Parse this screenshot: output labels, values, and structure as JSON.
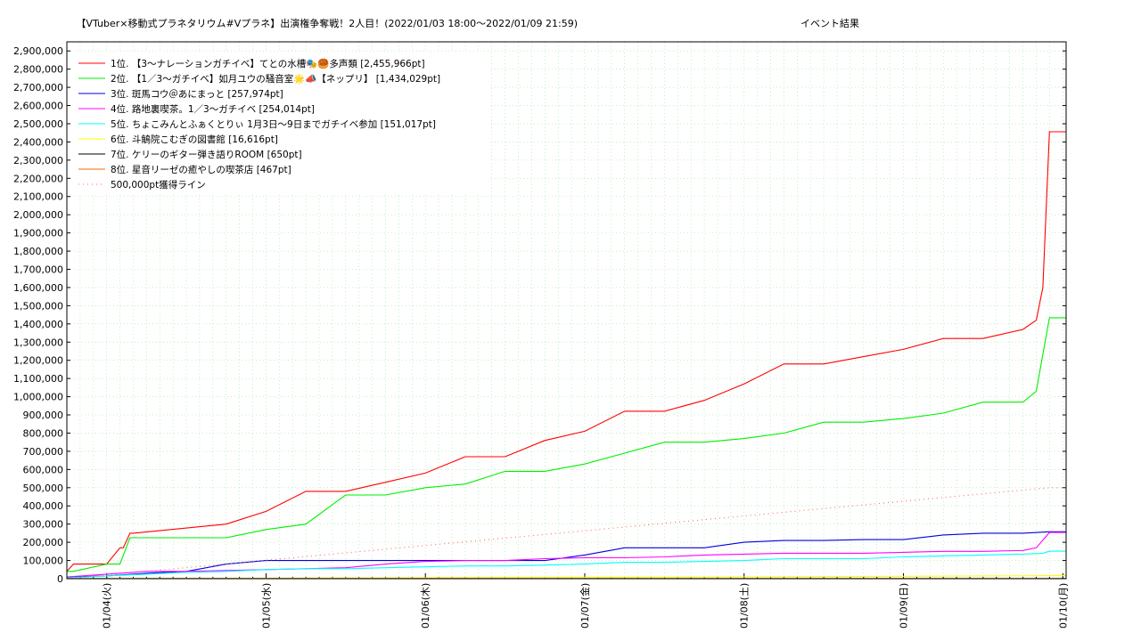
{
  "chart_data": {
    "type": "line",
    "title": "【VTuber×移動式プラネタリウム#Vプラネ】出演権争奪戦！2人目！(2022/01/03 18:00～2022/01/09 21:59)",
    "subtitle": "イベント結果",
    "xlabel": "",
    "ylabel": "",
    "xlim": [
      "2022-01-03 18:00",
      "2022-01-10 00:30"
    ],
    "ylim": [
      0,
      2950000
    ],
    "grid": true,
    "legend_position": "top-left",
    "x_ticks": [
      "01/04(火)",
      "01/05(水)",
      "01/06(木)",
      "01/07(金)",
      "01/08(土)",
      "01/09(日)",
      "01/10(月)"
    ],
    "y_ticks": [
      "0",
      "100,000",
      "200,000",
      "300,000",
      "400,000",
      "500,000",
      "600,000",
      "700,000",
      "800,000",
      "900,000",
      "1,000,000",
      "1,100,000",
      "1,200,000",
      "1,300,000",
      "1,400,000",
      "1,500,000",
      "1,600,000",
      "1,700,000",
      "1,800,000",
      "1,900,000",
      "2,000,000",
      "2,100,000",
      "2,200,000",
      "2,300,000",
      "2,400,000",
      "2,500,000",
      "2,600,000",
      "2,700,000",
      "2,800,000",
      "2,900,000"
    ],
    "series": [
      {
        "name": "1位. 【3～ナレーションガチイベ】てとの水槽🎭🥮多声類 [2,455,966pt]",
        "color": "#ff0000",
        "dash": "none",
        "x": [
          "2022-01-03 18:00",
          "2022-01-03 19:00",
          "2022-01-04 00:00",
          "2022-01-04 02:00",
          "2022-01-04 02:30",
          "2022-01-04 03:30",
          "2022-01-04 04:00",
          "2022-01-04 18:00",
          "2022-01-05 00:00",
          "2022-01-05 06:00",
          "2022-01-05 12:00",
          "2022-01-05 18:00",
          "2022-01-06 00:00",
          "2022-01-06 06:00",
          "2022-01-06 12:00",
          "2022-01-06 18:00",
          "2022-01-07 00:00",
          "2022-01-07 06:00",
          "2022-01-07 12:00",
          "2022-01-07 18:00",
          "2022-01-08 00:00",
          "2022-01-08 06:00",
          "2022-01-08 12:00",
          "2022-01-08 18:00",
          "2022-01-09 00:00",
          "2022-01-09 06:00",
          "2022-01-09 12:00",
          "2022-01-09 18:00",
          "2022-01-09 20:00",
          "2022-01-09 21:00",
          "2022-01-09 21:59",
          "2022-01-10 00:30"
        ],
        "y": [
          40000,
          80000,
          80000,
          170000,
          170000,
          250000,
          250000,
          300000,
          370000,
          480000,
          480000,
          530000,
          580000,
          670000,
          670000,
          760000,
          810000,
          920000,
          920000,
          980000,
          1070000,
          1180000,
          1180000,
          1220000,
          1260000,
          1320000,
          1320000,
          1370000,
          1420000,
          1600000,
          2455966,
          2455966
        ]
      },
      {
        "name": "2位. 【1／3～ガチイベ】如月ユウの騒音室🌟📣【ネップリ】 [1,434,029pt]",
        "color": "#00ee00",
        "dash": "none",
        "x": [
          "2022-01-03 18:00",
          "2022-01-03 19:00",
          "2022-01-04 00:00",
          "2022-01-04 02:00",
          "2022-01-04 03:30",
          "2022-01-04 18:00",
          "2022-01-05 00:00",
          "2022-01-05 06:00",
          "2022-01-05 12:00",
          "2022-01-05 18:00",
          "2022-01-06 00:00",
          "2022-01-06 06:00",
          "2022-01-06 12:00",
          "2022-01-06 18:00",
          "2022-01-07 00:00",
          "2022-01-07 06:00",
          "2022-01-07 12:00",
          "2022-01-07 18:00",
          "2022-01-08 00:00",
          "2022-01-08 06:00",
          "2022-01-08 12:00",
          "2022-01-08 18:00",
          "2022-01-09 00:00",
          "2022-01-09 06:00",
          "2022-01-09 12:00",
          "2022-01-09 18:00",
          "2022-01-09 20:00",
          "2022-01-09 21:59",
          "2022-01-10 00:30"
        ],
        "y": [
          40000,
          40000,
          80000,
          80000,
          225000,
          225000,
          270000,
          300000,
          460000,
          460000,
          500000,
          520000,
          590000,
          590000,
          630000,
          690000,
          750000,
          750000,
          770000,
          800000,
          860000,
          860000,
          880000,
          910000,
          970000,
          970000,
          1030000,
          1434029,
          1434029
        ]
      },
      {
        "name": "3位. 斑馬コウ＠あにまっと [257,974pt]",
        "color": "#0000dd",
        "dash": "none",
        "x": [
          "2022-01-03 18:00",
          "2022-01-04 00:00",
          "2022-01-04 06:00",
          "2022-01-04 12:00",
          "2022-01-04 18:00",
          "2022-01-05 00:00",
          "2022-01-05 06:00",
          "2022-01-05 12:00",
          "2022-01-05 18:00",
          "2022-01-06 00:00",
          "2022-01-06 06:00",
          "2022-01-06 12:00",
          "2022-01-06 18:00",
          "2022-01-07 00:00",
          "2022-01-07 06:00",
          "2022-01-07 12:00",
          "2022-01-07 18:00",
          "2022-01-08 00:00",
          "2022-01-08 06:00",
          "2022-01-08 12:00",
          "2022-01-08 18:00",
          "2022-01-09 00:00",
          "2022-01-09 06:00",
          "2022-01-09 12:00",
          "2022-01-09 18:00",
          "2022-01-09 21:59",
          "2022-01-10 00:30"
        ],
        "y": [
          10000,
          15000,
          30000,
          40000,
          80000,
          100000,
          100000,
          100000,
          100000,
          100000,
          100000,
          100000,
          100000,
          130000,
          170000,
          170000,
          170000,
          200000,
          210000,
          210000,
          215000,
          215000,
          240000,
          250000,
          250000,
          257974,
          257974
        ]
      },
      {
        "name": "4位. 路地裏喫茶。1／3～ガチイベ [254,014pt]",
        "color": "#ff00ff",
        "dash": "none",
        "x": [
          "2022-01-03 18:00",
          "2022-01-04 00:00",
          "2022-01-04 06:00",
          "2022-01-04 12:00",
          "2022-01-04 18:00",
          "2022-01-05 00:00",
          "2022-01-05 06:00",
          "2022-01-05 12:00",
          "2022-01-05 18:00",
          "2022-01-06 00:00",
          "2022-01-06 06:00",
          "2022-01-06 12:00",
          "2022-01-06 18:00",
          "2022-01-07 00:00",
          "2022-01-07 06:00",
          "2022-01-07 12:00",
          "2022-01-07 18:00",
          "2022-01-08 00:00",
          "2022-01-08 06:00",
          "2022-01-08 12:00",
          "2022-01-08 18:00",
          "2022-01-09 00:00",
          "2022-01-09 06:00",
          "2022-01-09 12:00",
          "2022-01-09 18:00",
          "2022-01-09 20:00",
          "2022-01-09 21:59",
          "2022-01-10 00:30"
        ],
        "y": [
          10000,
          25000,
          40000,
          40000,
          45000,
          50000,
          55000,
          60000,
          80000,
          95000,
          100000,
          100000,
          110000,
          115000,
          115000,
          120000,
          130000,
          135000,
          140000,
          140000,
          140000,
          145000,
          150000,
          150000,
          155000,
          170000,
          254014,
          254014
        ]
      },
      {
        "name": "5位. ちょこみんとふぁくとりぃ 1月3日〜9日までガチイベ参加 [151,017pt]",
        "color": "#00ffff",
        "dash": "none",
        "x": [
          "2022-01-03 18:00",
          "2022-01-04 00:00",
          "2022-01-04 06:00",
          "2022-01-04 12:00",
          "2022-01-04 18:00",
          "2022-01-05 00:00",
          "2022-01-05 06:00",
          "2022-01-05 12:00",
          "2022-01-05 18:00",
          "2022-01-06 00:00",
          "2022-01-06 06:00",
          "2022-01-06 12:00",
          "2022-01-06 18:00",
          "2022-01-07 00:00",
          "2022-01-07 06:00",
          "2022-01-07 12:00",
          "2022-01-07 18:00",
          "2022-01-08 00:00",
          "2022-01-08 06:00",
          "2022-01-08 12:00",
          "2022-01-08 18:00",
          "2022-01-09 00:00",
          "2022-01-09 06:00",
          "2022-01-09 12:00",
          "2022-01-09 18:00",
          "2022-01-09 21:00",
          "2022-01-09 21:59",
          "2022-01-10 00:30"
        ],
        "y": [
          5000,
          15000,
          25000,
          35000,
          40000,
          50000,
          55000,
          55000,
          60000,
          65000,
          70000,
          70000,
          75000,
          80000,
          90000,
          90000,
          95000,
          100000,
          110000,
          110000,
          110000,
          120000,
          125000,
          130000,
          135000,
          140000,
          151017,
          151017
        ]
      },
      {
        "name": "6位. 斗鵤院こむぎの図書館 [16,616pt]",
        "color": "#ffff00",
        "dash": "none",
        "x": [
          "2022-01-03 18:00",
          "2022-01-05 00:00",
          "2022-01-06 00:00",
          "2022-01-07 00:00",
          "2022-01-08 00:00",
          "2022-01-09 00:00",
          "2022-01-09 21:59",
          "2022-01-10 00:30"
        ],
        "y": [
          500,
          2000,
          5000,
          8000,
          10000,
          13000,
          16616,
          16616
        ]
      },
      {
        "name": "7位. ケリーのギター弾き語りROOM [650pt]",
        "color": "#000000",
        "dash": "none",
        "x": [
          "2022-01-03 18:00",
          "2022-01-09 21:59",
          "2022-01-10 00:30"
        ],
        "y": [
          300,
          650,
          650
        ]
      },
      {
        "name": "8位. 星音リーゼの癒やしの喫茶店 [467pt]",
        "color": "#ff6600",
        "dash": "none",
        "x": [
          "2022-01-03 18:00",
          "2022-01-09 21:59",
          "2022-01-10 00:30"
        ],
        "y": [
          200,
          467,
          467
        ]
      },
      {
        "name": "500,000pt獲得ライン",
        "color": "#ff6666",
        "dash": "1,4",
        "x": [
          "2022-01-03 18:00",
          "2022-01-09 21:59",
          "2022-01-10 00:30"
        ],
        "y": [
          0,
          500000,
          500000
        ]
      }
    ]
  }
}
